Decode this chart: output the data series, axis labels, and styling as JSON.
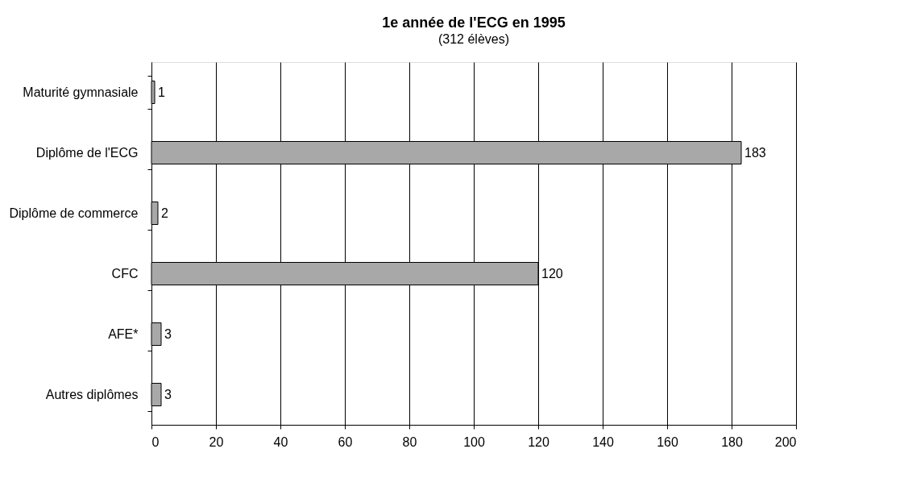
{
  "chart_data": {
    "type": "bar",
    "orientation": "horizontal",
    "title": "1e année de l'ECG en 1995",
    "subtitle": "(312 élèves)",
    "categories": [
      "Maturité gymnasiale",
      "Diplôme de l'ECG",
      "Diplôme de commerce",
      "CFC",
      "AFE*",
      "Autres diplômes"
    ],
    "values": [
      1,
      183,
      2,
      120,
      3,
      3
    ],
    "color": "#a8a8a8",
    "xlim": [
      0,
      200
    ],
    "xticks": [
      0,
      20,
      40,
      60,
      80,
      100,
      120,
      140,
      160,
      180,
      200
    ],
    "grid": "x",
    "data_labels": true
  }
}
